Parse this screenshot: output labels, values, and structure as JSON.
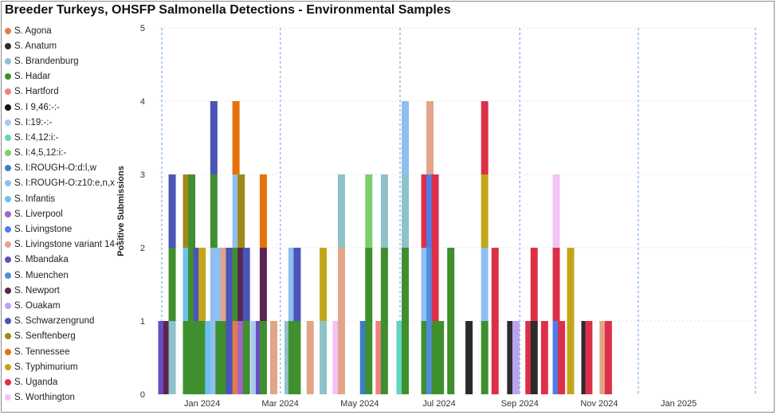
{
  "chart_data": {
    "type": "bar",
    "stacked": true,
    "title": "Breeder Turkeys, OHSFP Salmonella Detections - Environmental Samples",
    "ylabel": "Positive Submissions",
    "xlabel": "",
    "ylim": [
      0,
      5
    ],
    "yticks": [
      0,
      1,
      2,
      3,
      4,
      5
    ],
    "x_range": [
      "2023-12-01",
      "2025-03-01"
    ],
    "x_tick_labels": [
      {
        "date": "2024-01-01",
        "label": "Jan 2024"
      },
      {
        "date": "2024-03-01",
        "label": "Mar 2024"
      },
      {
        "date": "2024-05-01",
        "label": "May 2024"
      },
      {
        "date": "2024-07-01",
        "label": "Jul 2024"
      },
      {
        "date": "2024-09-01",
        "label": "Sep 2024"
      },
      {
        "date": "2024-11-01",
        "label": "Nov 2024"
      },
      {
        "date": "2025-01-01",
        "label": "Jan 2025"
      }
    ],
    "quarter_lines": [
      "2023-12-01",
      "2024-03-01",
      "2024-06-01",
      "2024-09-01",
      "2024-12-01",
      "2025-03-01"
    ],
    "grid": true,
    "legend_position": "left",
    "series": [
      {
        "name": "S. Agona",
        "color": "#e07b4a"
      },
      {
        "name": "S. Anatum",
        "color": "#2b2b2b"
      },
      {
        "name": "S. Brandenburg",
        "color": "#8fc1c9"
      },
      {
        "name": "S. Hadar",
        "color": "#3f8f2e"
      },
      {
        "name": "S. Hartford",
        "color": "#f08080"
      },
      {
        "name": "S. I 9,46:-:-",
        "color": "#111111"
      },
      {
        "name": "S. I:19:-:-",
        "color": "#a9c8f2"
      },
      {
        "name": "S. I:4,12:i:-",
        "color": "#5fd6bd"
      },
      {
        "name": "S. I:4,5,12:i:-",
        "color": "#7ccf6e"
      },
      {
        "name": "S. I:ROUGH-O:d:l,w",
        "color": "#3a7fc4"
      },
      {
        "name": "S. I:ROUGH-O:z10:e,n,x",
        "color": "#8fbef0"
      },
      {
        "name": "S. Infantis",
        "color": "#6cc1ec"
      },
      {
        "name": "S. Liverpool",
        "color": "#a563c9"
      },
      {
        "name": "S. Livingstone",
        "color": "#4f7de8"
      },
      {
        "name": "S. Livingstone variant 14+",
        "color": "#e2a587"
      },
      {
        "name": "S. Mbandaka",
        "color": "#6a4bc0"
      },
      {
        "name": "S. Muenchen",
        "color": "#4f8de0"
      },
      {
        "name": "S. Newport",
        "color": "#5c2450"
      },
      {
        "name": "S. Ouakam",
        "color": "#b8a4ec"
      },
      {
        "name": "S. Schwarzengrund",
        "color": "#4b55b8"
      },
      {
        "name": "S. Senftenberg",
        "color": "#a08818"
      },
      {
        "name": "S. Tennessee",
        "color": "#e8710a"
      },
      {
        "name": "S. Typhimurium",
        "color": "#c4a51a"
      },
      {
        "name": "S. Uganda",
        "color": "#dc3049"
      },
      {
        "name": "S. Worthington",
        "color": "#f4c2f4"
      }
    ],
    "bars": [
      {
        "date": "2023-12-01",
        "stack": [
          {
            "s": "S. Mbandaka",
            "v": 1
          }
        ]
      },
      {
        "date": "2023-12-05",
        "stack": [
          {
            "s": "S. Newport",
            "v": 1
          }
        ]
      },
      {
        "date": "2023-12-09",
        "stack": [
          {
            "s": "S. Brandenburg",
            "v": 1
          },
          {
            "s": "S. Hadar",
            "v": 1
          },
          {
            "s": "S. Schwarzengrund",
            "v": 1
          }
        ]
      },
      {
        "date": "2023-12-20",
        "stack": [
          {
            "s": "S. Hadar",
            "v": 1
          },
          {
            "s": "S. Infantis",
            "v": 1
          },
          {
            "s": "S. Senftenberg",
            "v": 1
          }
        ]
      },
      {
        "date": "2023-12-24",
        "stack": [
          {
            "s": "S. Hadar",
            "v": 3
          }
        ]
      },
      {
        "date": "2023-12-28",
        "stack": [
          {
            "s": "S. Hadar",
            "v": 1
          },
          {
            "s": "S. Schwarzengrund",
            "v": 1
          }
        ]
      },
      {
        "date": "2024-01-01",
        "stack": [
          {
            "s": "S. Hadar",
            "v": 1
          },
          {
            "s": "S. Typhimurium",
            "v": 1
          }
        ]
      },
      {
        "date": "2024-01-06",
        "stack": [
          {
            "s": "S. Infantis",
            "v": 1
          }
        ]
      },
      {
        "date": "2024-01-10",
        "stack": [
          {
            "s": "S. I:ROUGH-O:z10:e,n,x",
            "v": 2
          },
          {
            "s": "S. Hadar",
            "v": 1
          },
          {
            "s": "S. Schwarzengrund",
            "v": 1
          }
        ]
      },
      {
        "date": "2024-01-14",
        "stack": [
          {
            "s": "S. Hadar",
            "v": 1
          },
          {
            "s": "S. I:ROUGH-O:z10:e,n,x",
            "v": 1
          }
        ]
      },
      {
        "date": "2024-01-18",
        "stack": [
          {
            "s": "S. Hadar",
            "v": 1
          },
          {
            "s": "S. Livingstone variant 14+",
            "v": 1
          }
        ]
      },
      {
        "date": "2024-01-22",
        "stack": [
          {
            "s": "S. Schwarzengrund",
            "v": 2
          }
        ]
      },
      {
        "date": "2024-01-27",
        "stack": [
          {
            "s": "S. Agona",
            "v": 1
          },
          {
            "s": "S. Hadar",
            "v": 1
          },
          {
            "s": "S. I:ROUGH-O:z10:e,n,x",
            "v": 1
          },
          {
            "s": "S. Tennessee",
            "v": 1
          }
        ]
      },
      {
        "date": "2024-01-31",
        "stack": [
          {
            "s": "S. Liverpool",
            "v": 1
          },
          {
            "s": "S. Newport",
            "v": 1
          },
          {
            "s": "S. Senftenberg",
            "v": 1
          }
        ]
      },
      {
        "date": "2024-02-04",
        "stack": [
          {
            "s": "S. Hadar",
            "v": 1
          },
          {
            "s": "S. Schwarzengrund",
            "v": 1
          }
        ]
      },
      {
        "date": "2024-02-10",
        "stack": [
          {
            "s": "S. I:19:-:-",
            "v": 1
          }
        ]
      },
      {
        "date": "2024-02-14",
        "stack": [
          {
            "s": "S. Mbandaka",
            "v": 1
          }
        ]
      },
      {
        "date": "2024-02-17",
        "stack": [
          {
            "s": "S. Hadar",
            "v": 1
          },
          {
            "s": "S. Newport",
            "v": 1
          },
          {
            "s": "S. Tennessee",
            "v": 1
          }
        ]
      },
      {
        "date": "2024-02-25",
        "stack": [
          {
            "s": "S. Livingstone variant 14+",
            "v": 1
          }
        ]
      },
      {
        "date": "2024-03-07",
        "stack": [
          {
            "s": "S. Brandenburg",
            "v": 1
          }
        ]
      },
      {
        "date": "2024-03-10",
        "stack": [
          {
            "s": "S. Hadar",
            "v": 1
          },
          {
            "s": "S. I:ROUGH-O:z10:e,n,x",
            "v": 1
          }
        ]
      },
      {
        "date": "2024-03-14",
        "stack": [
          {
            "s": "S. Hadar",
            "v": 1
          },
          {
            "s": "S. Schwarzengrund",
            "v": 1
          }
        ]
      },
      {
        "date": "2024-03-24",
        "stack": [
          {
            "s": "S. Livingstone variant 14+",
            "v": 1
          }
        ]
      },
      {
        "date": "2024-04-03",
        "stack": [
          {
            "s": "S. Brandenburg",
            "v": 1
          },
          {
            "s": "S. Typhimurium",
            "v": 1
          }
        ]
      },
      {
        "date": "2024-04-13",
        "stack": [
          {
            "s": "S. Worthington",
            "v": 1
          }
        ]
      },
      {
        "date": "2024-04-17",
        "stack": [
          {
            "s": "S. Livingstone variant 14+",
            "v": 2
          },
          {
            "s": "S. Brandenburg",
            "v": 1
          }
        ]
      },
      {
        "date": "2024-05-04",
        "stack": [
          {
            "s": "S. I:ROUGH-O:d:l,w",
            "v": 1
          }
        ]
      },
      {
        "date": "2024-05-08",
        "stack": [
          {
            "s": "S. Hadar",
            "v": 2
          },
          {
            "s": "S. I:4,5,12:i:-",
            "v": 1
          }
        ]
      },
      {
        "date": "2024-05-16",
        "stack": [
          {
            "s": "S. Hartford",
            "v": 1
          }
        ]
      },
      {
        "date": "2024-05-20",
        "stack": [
          {
            "s": "S. Hadar",
            "v": 2
          },
          {
            "s": "S. Brandenburg",
            "v": 1
          }
        ]
      },
      {
        "date": "2024-06-01",
        "stack": [
          {
            "s": "S. I:4,12:i:-",
            "v": 1
          }
        ]
      },
      {
        "date": "2024-06-05",
        "stack": [
          {
            "s": "S. Hadar",
            "v": 2
          },
          {
            "s": "S. Brandenburg",
            "v": 1
          },
          {
            "s": "S. I:ROUGH-O:z10:e,n,x",
            "v": 1
          }
        ]
      },
      {
        "date": "2024-06-20",
        "stack": [
          {
            "s": "S. Hadar",
            "v": 1
          },
          {
            "s": "S. I:ROUGH-O:z10:e,n,x",
            "v": 1
          },
          {
            "s": "S. Uganda",
            "v": 1
          }
        ]
      },
      {
        "date": "2024-06-24",
        "stack": [
          {
            "s": "S. Muenchen",
            "v": 2
          },
          {
            "s": "S. Livingstone",
            "v": 1
          },
          {
            "s": "S. Livingstone variant 14+",
            "v": 1
          }
        ]
      },
      {
        "date": "2024-06-28",
        "stack": [
          {
            "s": "S. Hadar",
            "v": 1
          },
          {
            "s": "S. Uganda",
            "v": 2
          }
        ]
      },
      {
        "date": "2024-07-02",
        "stack": [
          {
            "s": "S. Hadar",
            "v": 1
          }
        ]
      },
      {
        "date": "2024-07-10",
        "stack": [
          {
            "s": "S. Hadar",
            "v": 2
          }
        ]
      },
      {
        "date": "2024-07-24",
        "stack": [
          {
            "s": "S. Anatum",
            "v": 1
          }
        ]
      },
      {
        "date": "2024-08-05",
        "stack": [
          {
            "s": "S. Hadar",
            "v": 1
          },
          {
            "s": "S. I:ROUGH-O:z10:e,n,x",
            "v": 1
          },
          {
            "s": "S. Typhimurium",
            "v": 1
          },
          {
            "s": "S. Uganda",
            "v": 1
          }
        ]
      },
      {
        "date": "2024-08-13",
        "stack": [
          {
            "s": "S. Uganda",
            "v": 2
          }
        ]
      },
      {
        "date": "2024-08-25",
        "stack": [
          {
            "s": "S. Anatum",
            "v": 1
          }
        ]
      },
      {
        "date": "2024-08-29",
        "stack": [
          {
            "s": "S. Ouakam",
            "v": 1
          }
        ]
      },
      {
        "date": "2024-09-08",
        "stack": [
          {
            "s": "S. Uganda",
            "v": 1
          }
        ]
      },
      {
        "date": "2024-09-12",
        "stack": [
          {
            "s": "S. Anatum",
            "v": 1
          },
          {
            "s": "S. Uganda",
            "v": 1
          }
        ]
      },
      {
        "date": "2024-09-20",
        "stack": [
          {
            "s": "S. Uganda",
            "v": 1
          }
        ]
      },
      {
        "date": "2024-09-29",
        "stack": [
          {
            "s": "S. Livingstone",
            "v": 1
          },
          {
            "s": "S. Uganda",
            "v": 1
          },
          {
            "s": "S. Worthington",
            "v": 1
          }
        ]
      },
      {
        "date": "2024-10-03",
        "stack": [
          {
            "s": "S. Uganda",
            "v": 1
          }
        ]
      },
      {
        "date": "2024-10-10",
        "stack": [
          {
            "s": "S. Typhimurium",
            "v": 2
          }
        ]
      },
      {
        "date": "2024-10-21",
        "stack": [
          {
            "s": "S. Anatum",
            "v": 1
          }
        ]
      },
      {
        "date": "2024-10-24",
        "stack": [
          {
            "s": "S. Uganda",
            "v": 1
          }
        ]
      },
      {
        "date": "2024-11-04",
        "stack": [
          {
            "s": "S. Livingstone variant 14+",
            "v": 1
          }
        ]
      },
      {
        "date": "2024-11-08",
        "stack": [
          {
            "s": "S. Uganda",
            "v": 1
          }
        ]
      }
    ]
  }
}
